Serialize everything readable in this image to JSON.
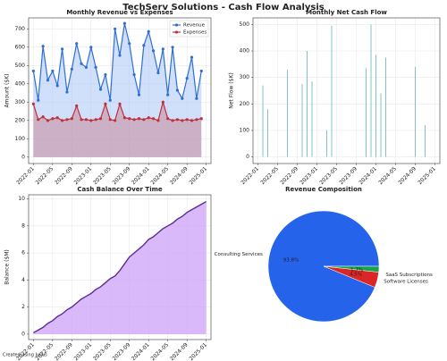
{
  "title": "TechServ Solutions - Cash Flow Analysis",
  "footer": "Created using Julius",
  "chart_data": [
    {
      "type": "line",
      "title": "Monthly Revenue vs Expenses",
      "ylabel": "Amount ($K)",
      "x": [
        "2022-01",
        "2022-02",
        "2022-03",
        "2022-04",
        "2022-05",
        "2022-06",
        "2022-07",
        "2022-08",
        "2022-09",
        "2022-10",
        "2022-11",
        "2022-12",
        "2023-01",
        "2023-02",
        "2023-03",
        "2023-04",
        "2023-05",
        "2023-06",
        "2023-07",
        "2023-08",
        "2023-09",
        "2023-10",
        "2023-11",
        "2023-12",
        "2024-01",
        "2024-02",
        "2024-03",
        "2024-04",
        "2024-05",
        "2024-06",
        "2024-07",
        "2024-08",
        "2024-09",
        "2024-10",
        "2024-11",
        "2024-12"
      ],
      "series": [
        {
          "name": "Revenue",
          "color": "#2f6fd6",
          "fill": "#a9c4f5",
          "values": [
            470,
            310,
            605,
            420,
            470,
            390,
            590,
            355,
            480,
            620,
            510,
            490,
            600,
            490,
            370,
            450,
            310,
            700,
            555,
            730,
            620,
            450,
            340,
            610,
            685,
            580,
            460,
            590,
            340,
            600,
            365,
            320,
            430,
            545,
            320,
            470
          ]
        },
        {
          "name": "Expenses",
          "color": "#c0303a",
          "fill": "#c98a9a",
          "values": [
            290,
            205,
            220,
            200,
            210,
            215,
            200,
            205,
            210,
            280,
            205,
            205,
            200,
            205,
            210,
            290,
            205,
            200,
            290,
            215,
            210,
            205,
            210,
            205,
            215,
            210,
            200,
            300,
            210,
            200,
            205,
            200,
            205,
            200,
            205,
            210
          ]
        }
      ],
      "xlim": [
        "2021-12",
        "2025-02"
      ],
      "xticks": [
        "2022-01",
        "2022-05",
        "2022-09",
        "2023-01",
        "2023-05",
        "2023-09",
        "2024-01",
        "2024-05",
        "2024-09",
        "2025-01"
      ],
      "ylim": [
        -35,
        760
      ],
      "yticks": [
        0,
        100,
        200,
        300,
        400,
        500,
        600,
        700
      ],
      "grid": true,
      "legend": "upper right"
    },
    {
      "type": "bar",
      "title": "Monthly Net Cash Flow",
      "ylabel": "Net Flow ($K)",
      "color": "#7fc4c0",
      "x": [
        "2022-02",
        "2022-03",
        "2022-07",
        "2022-10",
        "2022-11",
        "2022-12",
        "2023-03",
        "2023-04",
        "2023-11",
        "2023-12",
        "2024-01",
        "2024-02",
        "2024-03",
        "2024-09",
        "2024-11"
      ],
      "values": [
        270,
        180,
        330,
        275,
        400,
        285,
        100,
        495,
        335,
        500,
        385,
        240,
        375,
        340,
        120
      ],
      "xlim": [
        "2021-12",
        "2025-02"
      ],
      "xticks": [
        "2022-01",
        "2022-05",
        "2022-09",
        "2023-01",
        "2023-05",
        "2023-09",
        "2024-01",
        "2024-05",
        "2024-09",
        "2025-01"
      ],
      "ylim": [
        -25,
        525
      ],
      "yticks": [
        0,
        100,
        200,
        300,
        400,
        500
      ],
      "grid": true
    },
    {
      "type": "area",
      "title": "Cash Balance Over Time",
      "ylabel": "Balance ($M)",
      "color": "#5b2d91",
      "fill": "#cfa8f7",
      "x": [
        "2022-01",
        "2022-02",
        "2022-03",
        "2022-04",
        "2022-05",
        "2022-06",
        "2022-07",
        "2022-08",
        "2022-09",
        "2022-10",
        "2022-11",
        "2022-12",
        "2023-01",
        "2023-02",
        "2023-03",
        "2023-04",
        "2023-05",
        "2023-06",
        "2023-07",
        "2023-08",
        "2023-09",
        "2023-10",
        "2023-11",
        "2023-12",
        "2024-01",
        "2024-02",
        "2024-03",
        "2024-04",
        "2024-05",
        "2024-06",
        "2024-07",
        "2024-08",
        "2024-09",
        "2024-10",
        "2024-11",
        "2024-12",
        "2025-01"
      ],
      "values": [
        0.1,
        0.3,
        0.5,
        0.8,
        1.0,
        1.3,
        1.5,
        1.8,
        2.0,
        2.3,
        2.6,
        2.8,
        3.0,
        3.3,
        3.5,
        3.8,
        4.1,
        4.3,
        4.7,
        5.2,
        5.7,
        6.0,
        6.3,
        6.6,
        7.0,
        7.2,
        7.5,
        7.8,
        8.0,
        8.2,
        8.5,
        8.7,
        9.0,
        9.2,
        9.4,
        9.6,
        9.8
      ],
      "xlim": [
        "2021-12",
        "2025-02"
      ],
      "xticks": [
        "2022-01",
        "2022-05",
        "2022-09",
        "2023-01",
        "2023-05",
        "2023-09",
        "2024-01",
        "2024-05",
        "2024-09",
        "2025-01"
      ],
      "ylim": [
        -0.4,
        10.3
      ],
      "yticks": [
        0,
        2,
        4,
        6,
        8,
        10
      ],
      "grid": true
    },
    {
      "type": "pie",
      "title": "Revenue Composition",
      "categories": [
        "Consulting Services",
        "Software Licenses",
        "SaaS Subscriptions"
      ],
      "values": [
        93.8,
        4.5,
        1.7
      ],
      "value_labels": [
        "93.8%",
        "4.5%",
        "1.7%"
      ],
      "colors": [
        "#2563eb",
        "#dc2626",
        "#16a34a"
      ]
    }
  ]
}
